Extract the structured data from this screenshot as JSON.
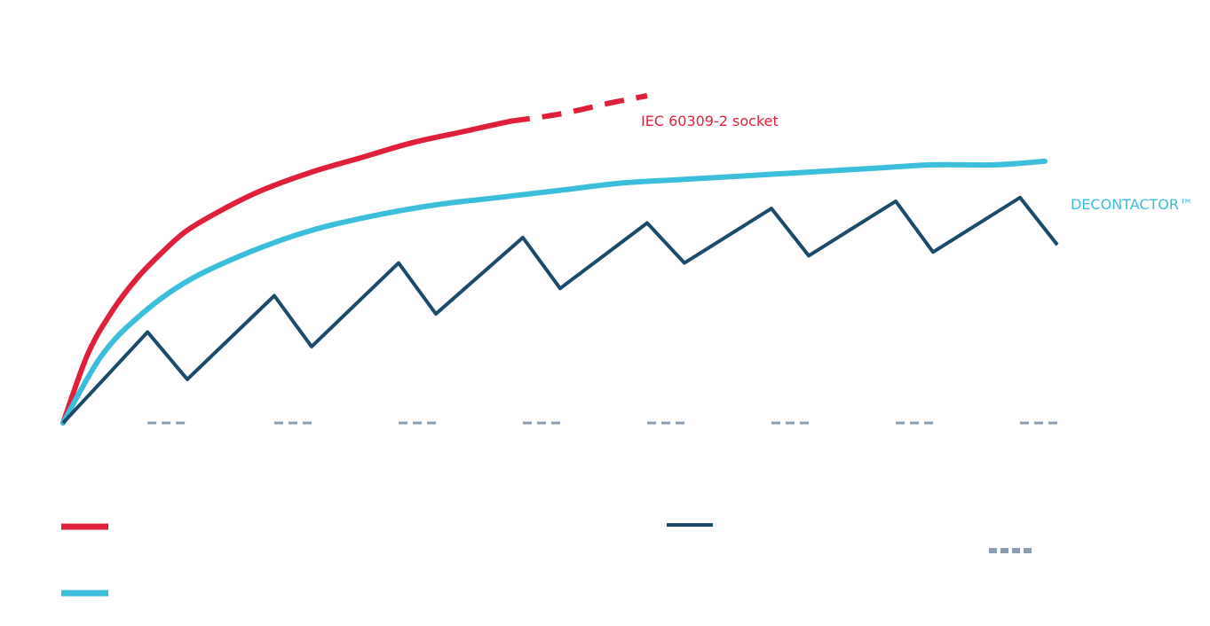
{
  "chart_data": {
    "type": "line",
    "title": "",
    "xlabel": "",
    "ylabel": "",
    "xlim": [
      0,
      8
    ],
    "ylim": [
      0,
      1
    ],
    "series": [
      {
        "name": "IEC 60309-2 socket",
        "color": "#E0203A",
        "style": "solid-then-dashed",
        "x": [
          0,
          0.2,
          0.4,
          0.6,
          0.8,
          1.0,
          1.3,
          1.6,
          2.0,
          2.4,
          2.8,
          3.2,
          3.6,
          4.0,
          4.4,
          4.7
        ],
        "y": [
          0,
          0.19,
          0.31,
          0.4,
          0.47,
          0.53,
          0.59,
          0.64,
          0.69,
          0.73,
          0.77,
          0.8,
          0.83,
          0.85,
          0.88,
          0.9
        ],
        "dashed_from_x": 3.7
      },
      {
        "name": "DECONTACTOR™",
        "color": "#3BBDDC",
        "style": "solid",
        "x": [
          0,
          0.3,
          0.6,
          1.0,
          1.5,
          2.0,
          2.5,
          3.0,
          3.5,
          4.0,
          4.5,
          5.0,
          5.5,
          6.0,
          6.5,
          7.0,
          7.5,
          7.9
        ],
        "y": [
          0,
          0.18,
          0.29,
          0.39,
          0.47,
          0.53,
          0.57,
          0.6,
          0.62,
          0.64,
          0.66,
          0.67,
          0.68,
          0.69,
          0.7,
          0.71,
          0.71,
          0.72
        ]
      },
      {
        "name": "",
        "color": "#1B4B6B",
        "style": "solid",
        "x": [
          0,
          0.68,
          1.0,
          1.7,
          2.0,
          2.7,
          3.0,
          3.7,
          4.0,
          4.7,
          5.0,
          5.7,
          6.0,
          6.7,
          7.0,
          7.7,
          8.0
        ],
        "y": [
          0,
          0.25,
          0.12,
          0.35,
          0.21,
          0.44,
          0.3,
          0.51,
          0.37,
          0.55,
          0.44,
          0.59,
          0.46,
          0.61,
          0.47,
          0.62,
          0.49
        ]
      }
    ],
    "baseline_segments": {
      "color": "#8A9CAF",
      "y": 0,
      "segments": [
        [
          0.68,
          0.98
        ],
        [
          1.7,
          2.0
        ],
        [
          2.7,
          3.0
        ],
        [
          3.7,
          4.0
        ],
        [
          4.7,
          5.0
        ],
        [
          5.7,
          6.0
        ],
        [
          6.7,
          7.0
        ],
        [
          7.7,
          8.0
        ]
      ]
    },
    "legend": {
      "placement": "bottom",
      "entries": [
        {
          "name": "",
          "color": "#E0203A",
          "style": "solid"
        },
        {
          "name": "",
          "color": "#3BBDDC",
          "style": "solid"
        },
        {
          "name": "",
          "color": "#1B4B6B",
          "style": "solid"
        },
        {
          "name": "",
          "color": "#8A9CAF",
          "style": "dotted"
        }
      ]
    }
  }
}
